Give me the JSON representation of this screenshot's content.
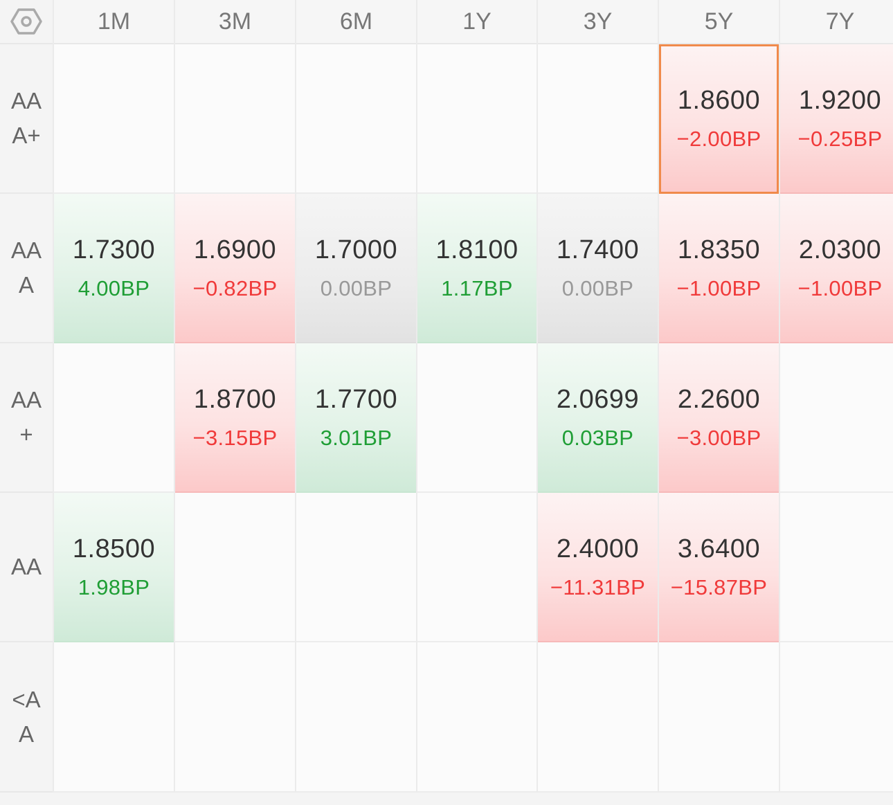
{
  "settings_icon": "hexagon-settings-icon",
  "columns": [
    "1M",
    "3M",
    "6M",
    "1Y",
    "3Y",
    "5Y",
    "7Y"
  ],
  "rows": [
    {
      "rating": "AAA+",
      "cells": [
        null,
        null,
        null,
        null,
        null,
        {
          "rate": "1.8600",
          "change": "−2.00BP",
          "trend": "up",
          "selected": true
        },
        {
          "rate": "1.9200",
          "change": "−0.25BP",
          "trend": "up"
        }
      ]
    },
    {
      "rating": "AAA",
      "cells": [
        {
          "rate": "1.7300",
          "change": "4.00BP",
          "trend": "down"
        },
        {
          "rate": "1.6900",
          "change": "−0.82BP",
          "trend": "up"
        },
        {
          "rate": "1.7000",
          "change": "0.00BP",
          "trend": "flat"
        },
        {
          "rate": "1.8100",
          "change": "1.17BP",
          "trend": "down"
        },
        {
          "rate": "1.7400",
          "change": "0.00BP",
          "trend": "flat"
        },
        {
          "rate": "1.8350",
          "change": "−1.00BP",
          "trend": "up"
        },
        {
          "rate": "2.0300",
          "change": "−1.00BP",
          "trend": "up"
        }
      ]
    },
    {
      "rating": "AA+",
      "cells": [
        null,
        {
          "rate": "1.8700",
          "change": "−3.15BP",
          "trend": "up"
        },
        {
          "rate": "1.7700",
          "change": "3.01BP",
          "trend": "down"
        },
        null,
        {
          "rate": "2.0699",
          "change": "0.03BP",
          "trend": "down"
        },
        {
          "rate": "2.2600",
          "change": "−3.00BP",
          "trend": "up"
        },
        null
      ]
    },
    {
      "rating": "AA",
      "cells": [
        {
          "rate": "1.8500",
          "change": "1.98BP",
          "trend": "down"
        },
        null,
        null,
        null,
        {
          "rate": "2.4000",
          "change": "−11.31BP",
          "trend": "up"
        },
        {
          "rate": "3.6400",
          "change": "−15.87BP",
          "trend": "up"
        },
        null
      ]
    },
    {
      "rating": "<AA",
      "cells": [
        null,
        null,
        null,
        null,
        null,
        null,
        null
      ]
    }
  ],
  "colors": {
    "negative_text": "#f03a3a",
    "positive_text": "#1f9e35",
    "zero_text": "#999999",
    "selected_border": "#f08a4b"
  }
}
